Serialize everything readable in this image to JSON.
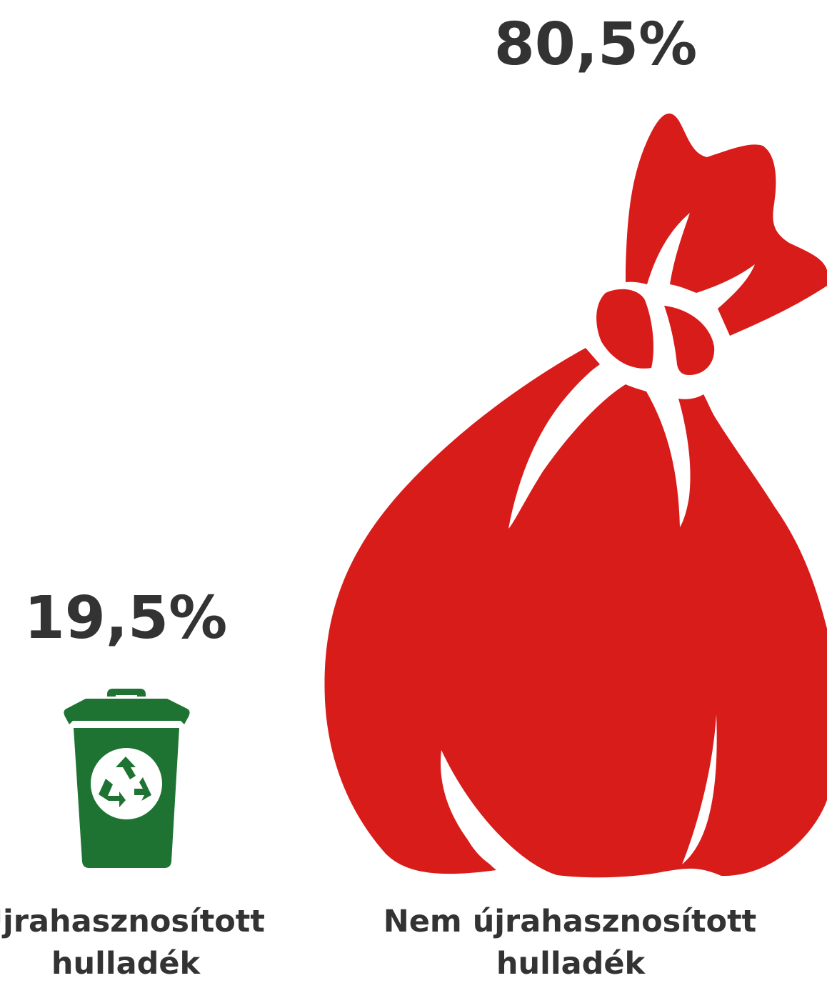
{
  "chart_data": {
    "type": "pictogram",
    "unit": "%",
    "items": [
      {
        "label_line1": "Újrahasznosított",
        "label_line2": "hulladék",
        "value": 19.5,
        "value_label": "19,5%",
        "icon": "recycle-bin-icon",
        "color": "#1e7332"
      },
      {
        "label_line1": "Nem újrahasznosított",
        "label_line2": "hulladék",
        "value": 80.5,
        "value_label": "80,5%",
        "icon": "garbage-bag-icon",
        "color": "#d81c1a"
      }
    ]
  }
}
